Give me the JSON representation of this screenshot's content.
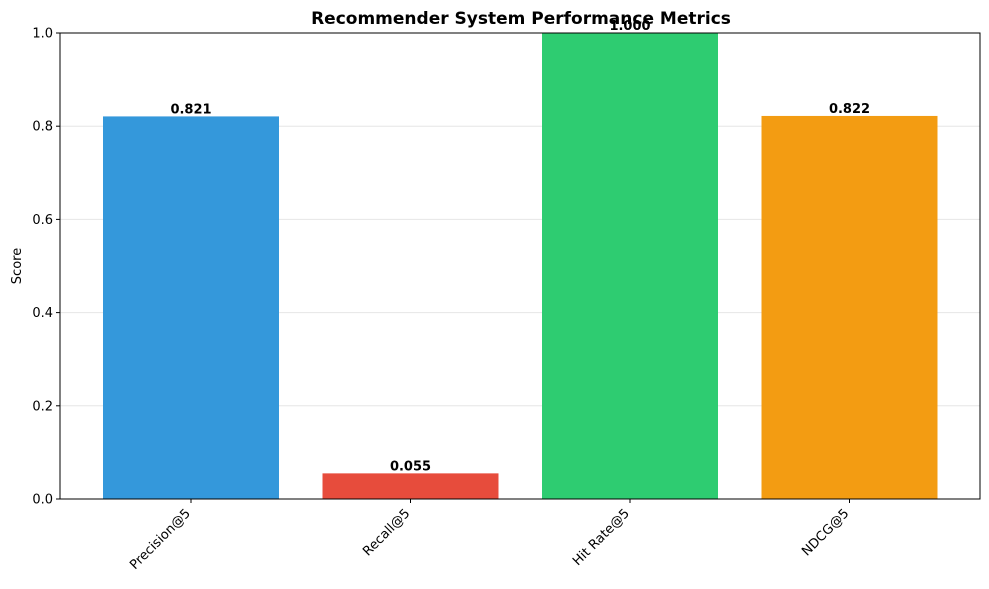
{
  "chart_data": {
    "type": "bar",
    "title": "Recommender System Performance Metrics",
    "xlabel": "",
    "ylabel": "Score",
    "categories": [
      "Precision@5",
      "Recall@5",
      "Hit Rate@5",
      "NDCG@5"
    ],
    "values": [
      0.821,
      0.055,
      1.0,
      0.822
    ],
    "value_labels": [
      "0.821",
      "0.055",
      "1.000",
      "0.822"
    ],
    "colors": [
      "#3498db",
      "#e74c3c",
      "#2ecc71",
      "#f39c12"
    ],
    "ylim": [
      0,
      1.0
    ],
    "yticks": [
      0.0,
      0.2,
      0.4,
      0.6,
      0.8,
      1.0
    ],
    "ytick_labels": [
      "0.0",
      "0.2",
      "0.4",
      "0.6",
      "0.8",
      "1.0"
    ],
    "grid": "y",
    "legend": "none"
  }
}
